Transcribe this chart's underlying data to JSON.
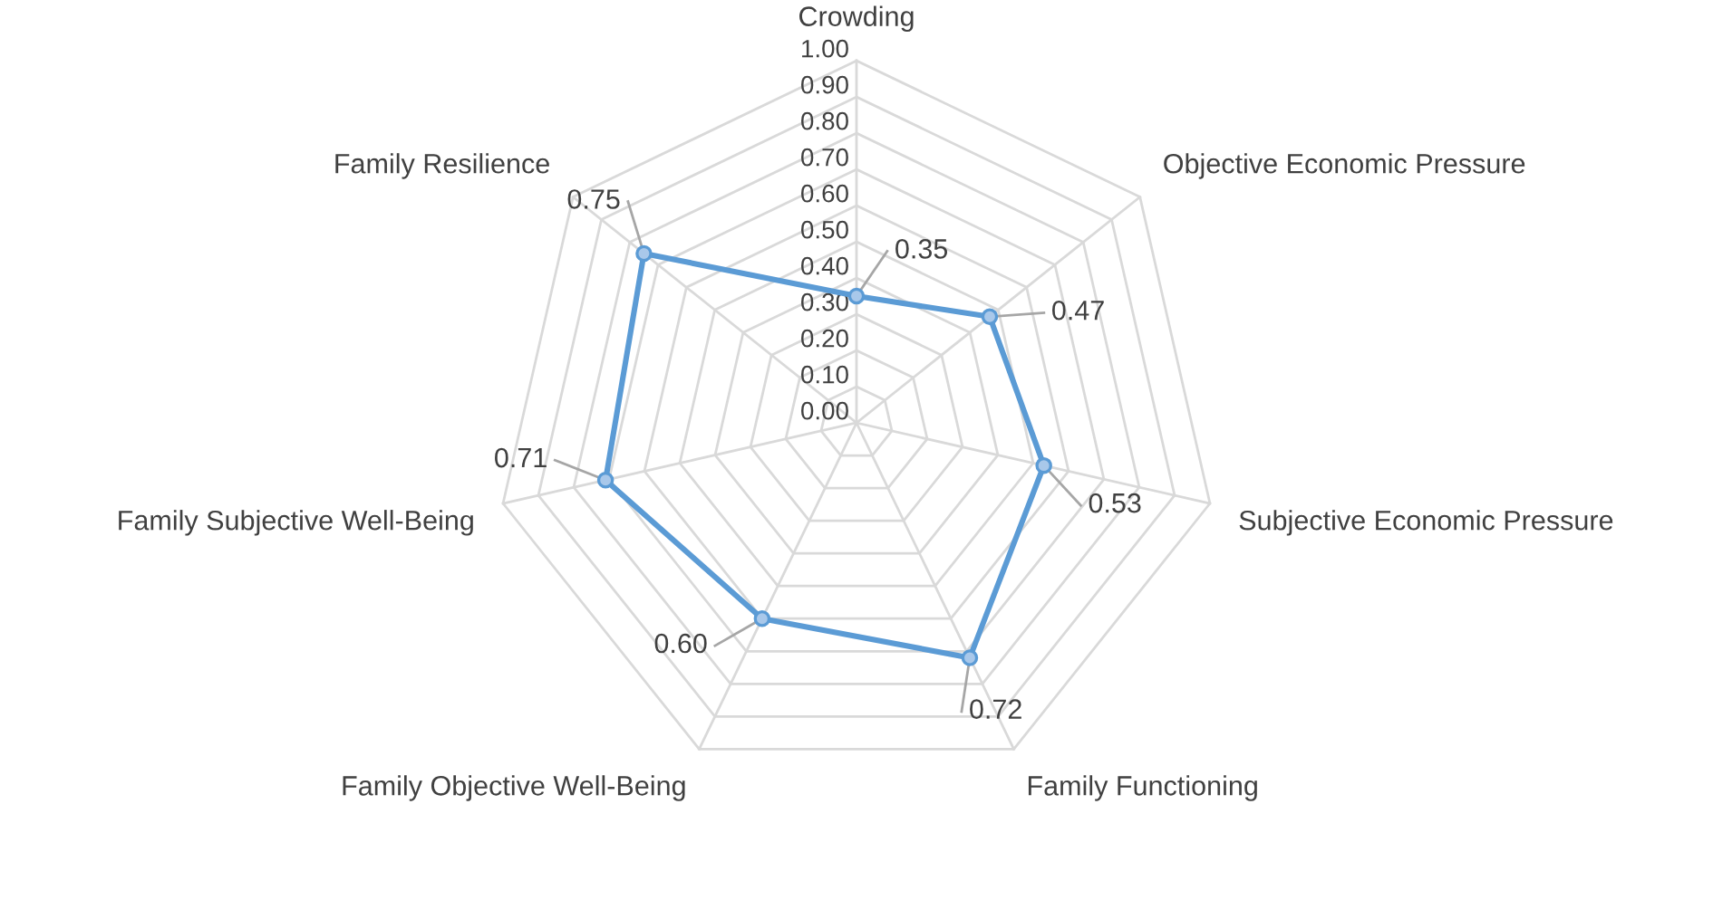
{
  "chart_data": {
    "type": "radar",
    "categories": [
      "Crowding",
      "Objective Economic Pressure",
      "Subjective Economic Pressure",
      "Family Functioning",
      "Family Objective Well-Being",
      "Family Subjective Well-Being",
      "Family Resilience"
    ],
    "series": [
      {
        "color": "#5b9bd5",
        "values": [
          0.35,
          0.47,
          0.53,
          0.72,
          0.6,
          0.71,
          0.75
        ],
        "value_labels": [
          "0.35",
          "0.47",
          "0.53",
          "0.72",
          "0.60",
          "0.71",
          "0.75"
        ]
      }
    ],
    "ylim": [
      0,
      1
    ],
    "yticks": [
      {
        "value": 0,
        "label": "0.00"
      },
      {
        "value": 0.1,
        "label": "0.10"
      },
      {
        "value": 0.2,
        "label": "0.20"
      },
      {
        "value": 0.3,
        "label": "0.30"
      },
      {
        "value": 0.4,
        "label": "0.40"
      },
      {
        "value": 0.5,
        "label": "0.50"
      },
      {
        "value": 0.6,
        "label": "0.60"
      },
      {
        "value": 0.7,
        "label": "0.70"
      },
      {
        "value": 0.8,
        "label": "0.80"
      },
      {
        "value": 0.9,
        "label": "0.90"
      },
      {
        "value": 1,
        "label": "1.00"
      }
    ],
    "grid": true,
    "marker": "circle"
  }
}
